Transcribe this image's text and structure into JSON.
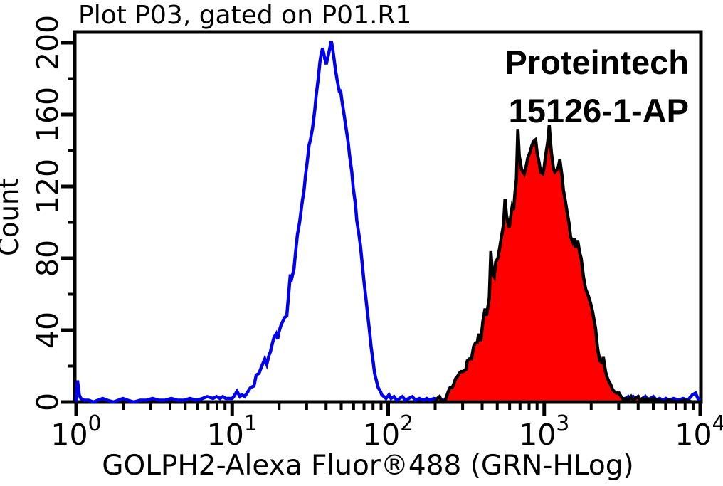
{
  "chart_data": {
    "type": "area",
    "title": "Plot P03, gated on P01.R1",
    "xlabel": "GOLPH2-Alexa Fluor®488 (GRN-HLog)",
    "ylabel": "Count",
    "annotations": [
      "Proteintech",
      "15126-1-AP"
    ],
    "x_scale": "log10",
    "xlim_exponents": [
      0,
      4
    ],
    "ylim": [
      0,
      200
    ],
    "x_major_tick_exponents": [
      0,
      1,
      2,
      3,
      4
    ],
    "x_tick_base": "10",
    "x_minor_tick_multipliers": [
      2,
      3,
      4,
      5,
      6,
      7,
      8,
      9
    ],
    "y_major_ticks": [
      0,
      40,
      80,
      120,
      160,
      200
    ],
    "y_minor_ticks": [
      20,
      60,
      100,
      140,
      180
    ],
    "grid": false,
    "legend": "none",
    "colors": {
      "outline_series": "#0000ee",
      "filled_series": "#ff0000",
      "filled_series_stroke": "#000000",
      "axis": "#000000"
    },
    "series": [
      {
        "name": "blue-outline-histogram",
        "style": "outline",
        "color": "#0000ee",
        "points": [
          [
            0.0,
            0
          ],
          [
            0.004,
            7
          ],
          [
            0.008,
            12
          ],
          [
            0.013,
            9
          ],
          [
            0.02,
            4
          ],
          [
            0.03,
            2
          ],
          [
            0.05,
            1
          ],
          [
            0.08,
            1
          ],
          [
            0.11,
            0
          ],
          [
            0.14,
            1
          ],
          [
            0.17,
            2
          ],
          [
            0.2,
            1
          ],
          [
            0.24,
            0
          ],
          [
            0.27,
            1
          ],
          [
            0.3,
            2
          ],
          [
            0.33,
            1
          ],
          [
            0.37,
            0
          ],
          [
            0.41,
            1
          ],
          [
            0.45,
            1
          ],
          [
            0.49,
            2
          ],
          [
            0.53,
            1
          ],
          [
            0.57,
            1
          ],
          [
            0.61,
            2
          ],
          [
            0.65,
            1
          ],
          [
            0.69,
            1
          ],
          [
            0.73,
            2
          ],
          [
            0.77,
            1
          ],
          [
            0.81,
            2
          ],
          [
            0.84,
            3
          ],
          [
            0.877,
            2
          ],
          [
            0.9,
            3
          ],
          [
            0.922,
            2
          ],
          [
            0.94,
            3
          ],
          [
            0.959,
            2
          ],
          [
            0.98,
            2
          ],
          [
            1.0,
            2
          ],
          [
            1.01,
            3
          ],
          [
            1.031,
            6
          ],
          [
            1.05,
            3
          ],
          [
            1.063,
            4
          ],
          [
            1.08,
            3
          ],
          [
            1.095,
            5
          ],
          [
            1.117,
            8
          ],
          [
            1.14,
            9
          ],
          [
            1.154,
            15
          ],
          [
            1.172,
            16
          ],
          [
            1.19,
            20
          ],
          [
            1.209,
            24
          ],
          [
            1.222,
            21
          ],
          [
            1.236,
            26
          ],
          [
            1.245,
            28
          ],
          [
            1.259,
            33
          ],
          [
            1.268,
            36
          ],
          [
            1.282,
            38
          ],
          [
            1.291,
            35
          ],
          [
            1.3,
            39
          ],
          [
            1.314,
            43
          ],
          [
            1.336,
            47
          ],
          [
            1.35,
            48
          ],
          [
            1.359,
            57
          ],
          [
            1.373,
            71
          ],
          [
            1.382,
            69
          ],
          [
            1.396,
            74
          ],
          [
            1.405,
            82
          ],
          [
            1.418,
            93
          ],
          [
            1.432,
            100
          ],
          [
            1.45,
            112
          ],
          [
            1.461,
            118
          ],
          [
            1.47,
            126
          ],
          [
            1.484,
            136
          ],
          [
            1.493,
            143
          ],
          [
            1.502,
            146
          ],
          [
            1.516,
            153
          ],
          [
            1.53,
            163
          ],
          [
            1.539,
            171
          ],
          [
            1.553,
            181
          ],
          [
            1.562,
            189
          ],
          [
            1.571,
            194
          ],
          [
            1.58,
            197
          ],
          [
            1.594,
            191
          ],
          [
            1.603,
            188
          ],
          [
            1.616,
            193
          ],
          [
            1.626,
            197
          ],
          [
            1.635,
            201
          ],
          [
            1.644,
            197
          ],
          [
            1.653,
            191
          ],
          [
            1.662,
            185
          ],
          [
            1.671,
            180
          ],
          [
            1.68,
            176
          ],
          [
            1.689,
            172
          ],
          [
            1.694,
            174
          ],
          [
            1.703,
            168
          ],
          [
            1.717,
            160
          ],
          [
            1.731,
            152
          ],
          [
            1.744,
            144
          ],
          [
            1.753,
            137
          ],
          [
            1.767,
            128
          ],
          [
            1.776,
            119
          ],
          [
            1.79,
            110
          ],
          [
            1.799,
            101
          ],
          [
            1.813,
            93
          ],
          [
            1.822,
            87
          ],
          [
            1.836,
            75
          ],
          [
            1.845,
            67
          ],
          [
            1.858,
            57
          ],
          [
            1.868,
            49
          ],
          [
            1.881,
            39
          ],
          [
            1.89,
            31
          ],
          [
            1.904,
            22
          ],
          [
            1.913,
            16
          ],
          [
            1.927,
            11
          ],
          [
            1.936,
            8
          ],
          [
            1.95,
            6
          ],
          [
            1.959,
            4
          ],
          [
            1.973,
            3
          ],
          [
            1.986,
            2
          ],
          [
            2.005,
            4
          ],
          [
            2.018,
            2
          ],
          [
            2.037,
            3
          ],
          [
            2.055,
            1
          ],
          [
            2.073,
            2
          ],
          [
            2.091,
            3
          ],
          [
            2.11,
            1
          ],
          [
            2.132,
            2
          ],
          [
            2.155,
            3
          ],
          [
            2.174,
            1
          ],
          [
            2.201,
            2
          ],
          [
            2.224,
            1
          ],
          [
            2.247,
            2
          ],
          [
            2.269,
            1
          ],
          [
            2.292,
            2
          ],
          [
            2.35,
            1
          ],
          [
            2.45,
            1
          ],
          [
            2.6,
            2
          ],
          [
            2.75,
            1
          ],
          [
            2.9,
            2
          ],
          [
            3.05,
            1
          ],
          [
            3.2,
            2
          ],
          [
            3.35,
            1
          ],
          [
            3.45,
            1
          ],
          [
            3.52,
            2
          ],
          [
            3.539,
            3
          ],
          [
            3.557,
            1
          ],
          [
            3.571,
            3
          ],
          [
            3.584,
            2
          ],
          [
            3.6,
            3
          ],
          [
            3.616,
            1
          ],
          [
            3.63,
            2
          ],
          [
            3.648,
            3
          ],
          [
            3.66,
            1
          ],
          [
            3.68,
            2
          ],
          [
            3.7,
            3
          ],
          [
            3.72,
            1
          ],
          [
            3.74,
            2
          ],
          [
            3.76,
            1
          ],
          [
            3.78,
            2
          ],
          [
            3.8,
            1
          ],
          [
            3.83,
            2
          ],
          [
            3.86,
            1
          ],
          [
            3.89,
            2
          ],
          [
            3.92,
            1
          ],
          [
            3.95,
            4
          ],
          [
            3.97,
            5
          ],
          [
            3.985,
            2
          ],
          [
            4.0,
            1
          ]
        ]
      },
      {
        "name": "red-filled-histogram",
        "style": "filled",
        "color": "#ff0000",
        "stroke": "#000000",
        "points": [
          [
            2.301,
            0
          ],
          [
            2.315,
            2
          ],
          [
            2.329,
            3
          ],
          [
            2.34,
            1
          ],
          [
            2.352,
            0
          ],
          [
            2.365,
            1
          ],
          [
            2.374,
            3
          ],
          [
            2.386,
            6
          ],
          [
            2.397,
            8
          ],
          [
            2.41,
            8
          ],
          [
            2.42,
            10
          ],
          [
            2.432,
            13
          ],
          [
            2.443,
            14
          ],
          [
            2.455,
            16
          ],
          [
            2.466,
            17
          ],
          [
            2.48,
            17
          ],
          [
            2.498,
            18
          ],
          [
            2.507,
            23
          ],
          [
            2.52,
            24
          ],
          [
            2.534,
            24
          ],
          [
            2.548,
            31
          ],
          [
            2.56,
            33
          ],
          [
            2.571,
            33
          ],
          [
            2.58,
            38
          ],
          [
            2.594,
            34
          ],
          [
            2.607,
            45
          ],
          [
            2.621,
            52
          ],
          [
            2.63,
            48
          ],
          [
            2.648,
            58
          ],
          [
            2.658,
            84
          ],
          [
            2.668,
            72
          ],
          [
            2.68,
            70
          ],
          [
            2.689,
            78
          ],
          [
            2.703,
            80
          ],
          [
            2.717,
            87
          ],
          [
            2.726,
            92
          ],
          [
            2.74,
            99
          ],
          [
            2.749,
            113
          ],
          [
            2.758,
            104
          ],
          [
            2.767,
            100
          ],
          [
            2.776,
            97
          ],
          [
            2.785,
            103
          ],
          [
            2.795,
            109
          ],
          [
            2.804,
            107
          ],
          [
            2.813,
            117
          ],
          [
            2.822,
            124
          ],
          [
            2.831,
            152
          ],
          [
            2.84,
            137
          ],
          [
            2.854,
            130
          ],
          [
            2.863,
            128
          ],
          [
            2.872,
            127
          ],
          [
            2.886,
            132
          ],
          [
            2.895,
            136
          ],
          [
            2.909,
            139
          ],
          [
            2.922,
            143
          ],
          [
            2.932,
            145
          ],
          [
            2.945,
            146
          ],
          [
            2.954,
            139
          ],
          [
            2.968,
            133
          ],
          [
            2.977,
            128
          ],
          [
            2.991,
            127
          ],
          [
            3.0,
            131
          ],
          [
            3.009,
            137
          ],
          [
            3.023,
            145
          ],
          [
            3.032,
            154
          ],
          [
            3.04,
            145
          ],
          [
            3.046,
            139
          ],
          [
            3.059,
            130
          ],
          [
            3.068,
            128
          ],
          [
            3.078,
            129
          ],
          [
            3.091,
            131
          ],
          [
            3.1,
            135
          ],
          [
            3.114,
            126
          ],
          [
            3.123,
            118
          ],
          [
            3.137,
            111
          ],
          [
            3.146,
            106
          ],
          [
            3.16,
            99
          ],
          [
            3.169,
            92
          ],
          [
            3.183,
            89
          ],
          [
            3.192,
            91
          ],
          [
            3.2,
            86
          ],
          [
            3.214,
            90
          ],
          [
            3.228,
            83
          ],
          [
            3.237,
            80
          ],
          [
            3.251,
            70
          ],
          [
            3.265,
            63
          ],
          [
            3.283,
            59
          ],
          [
            3.297,
            55
          ],
          [
            3.311,
            50
          ],
          [
            3.329,
            41
          ],
          [
            3.342,
            30
          ],
          [
            3.356,
            23
          ],
          [
            3.37,
            22
          ],
          [
            3.379,
            25
          ],
          [
            3.393,
            17
          ],
          [
            3.402,
            14
          ],
          [
            3.416,
            11
          ],
          [
            3.425,
            10
          ],
          [
            3.438,
            7
          ],
          [
            3.447,
            6
          ],
          [
            3.461,
            5
          ],
          [
            3.479,
            5
          ],
          [
            3.493,
            3
          ],
          [
            3.511,
            1
          ],
          [
            3.525,
            2
          ],
          [
            3.539,
            1
          ],
          [
            3.557,
            3
          ],
          [
            3.571,
            1
          ],
          [
            3.584,
            2
          ],
          [
            3.603,
            3
          ],
          [
            3.616,
            1
          ],
          [
            3.63,
            2
          ],
          [
            3.648,
            1
          ],
          [
            3.662,
            2
          ],
          [
            3.68,
            1
          ],
          [
            3.7,
            2
          ],
          [
            3.72,
            1
          ],
          [
            3.74,
            1
          ],
          [
            3.76,
            0
          ],
          [
            3.8,
            1
          ],
          [
            3.85,
            0
          ],
          [
            3.9,
            1
          ],
          [
            3.95,
            0
          ],
          [
            4.0,
            0
          ]
        ]
      }
    ]
  }
}
